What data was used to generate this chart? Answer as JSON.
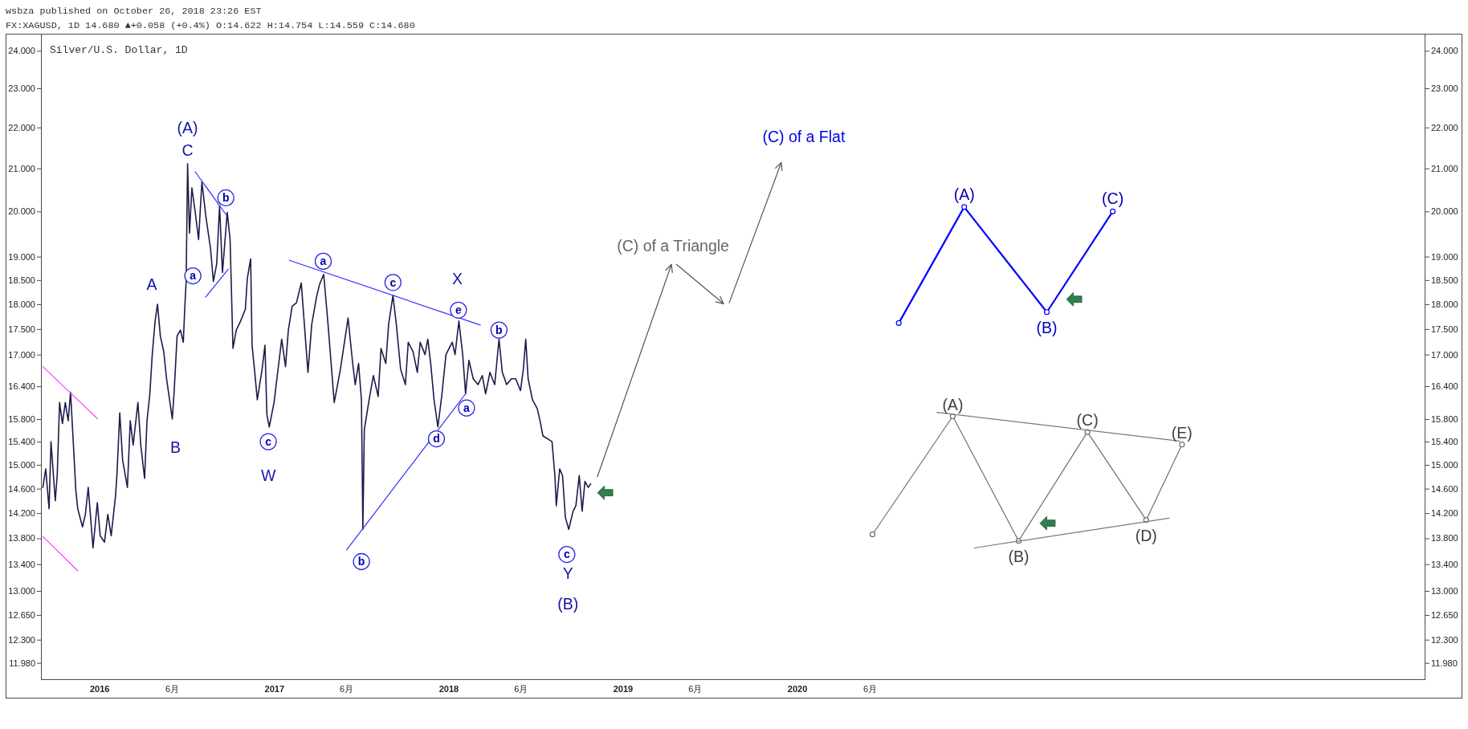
{
  "chart_data": {
    "type": "line",
    "title": "Silver/U.S. Dollar, 1D",
    "subtitle": "FX:XAGUSD, 1D 14.680 ▲+0.058 (+0.4%) O:14.622 H:14.754 L:14.559 C:14.680",
    "log": true,
    "xlim": [
      "2015-08-31",
      "2023-08-06"
    ],
    "xticks": [
      {
        "value": "2016-01-01",
        "label": "2016"
      },
      {
        "value": "2016-06-01",
        "label": "6月"
      },
      {
        "value": "2017-01-01",
        "label": "2017"
      },
      {
        "value": "2017-06-01",
        "label": "6月"
      },
      {
        "value": "2018-01-01",
        "label": "2018"
      },
      {
        "value": "2018-06-01",
        "label": "6月"
      },
      {
        "value": "2019-01-01",
        "label": "2019"
      },
      {
        "value": "2019-06-01",
        "label": "6月"
      },
      {
        "value": "2020-01-01",
        "label": "2020"
      },
      {
        "value": "2020-06-01",
        "label": "6月"
      }
    ],
    "ylim": [
      11.76,
      24.47
    ],
    "yticks": [
      {
        "value": 24,
        "label": "24.000"
      },
      {
        "value": 23,
        "label": "23.000"
      },
      {
        "value": 22,
        "label": "22.000"
      },
      {
        "value": 21,
        "label": "21.000"
      },
      {
        "value": 20,
        "label": "20.000"
      },
      {
        "value": 19,
        "label": "19.000"
      },
      {
        "value": 18.5,
        "label": "18.500"
      },
      {
        "value": 18,
        "label": "18.000"
      },
      {
        "value": 17.5,
        "label": "17.500"
      },
      {
        "value": 17,
        "label": "17.000"
      },
      {
        "value": 16.4,
        "label": "16.400"
      },
      {
        "value": 15.8,
        "label": "15.800"
      },
      {
        "value": 15.4,
        "label": "15.400"
      },
      {
        "value": 15,
        "label": "15.000"
      },
      {
        "value": 14.6,
        "label": "14.600"
      },
      {
        "value": 14.2,
        "label": "14.200"
      },
      {
        "value": 13.8,
        "label": "13.800"
      },
      {
        "value": 13.4,
        "label": "13.400"
      },
      {
        "value": 13,
        "label": "13.000"
      },
      {
        "value": 12.65,
        "label": "12.650"
      },
      {
        "value": 12.3,
        "label": "12.300"
      },
      {
        "value": 11.98,
        "label": "11.980"
      }
    ],
    "series": [
      {
        "color": "#1f1a4a",
        "x": [
          "2015-09-04",
          "2015-09-10",
          "2015-09-17",
          "2015-09-21",
          "2015-09-30",
          "2015-10-04",
          "2015-10-09",
          "2015-10-15",
          "2015-10-21",
          "2015-10-27",
          "2015-11-01",
          "2015-11-07",
          "2015-11-12",
          "2015-11-16",
          "2015-11-26",
          "2015-12-02",
          "2015-12-08",
          "2015-12-18",
          "2015-12-27",
          "2016-01-02",
          "2016-01-11",
          "2016-01-18",
          "2016-01-25",
          "2016-02-03",
          "2016-02-06",
          "2016-02-12",
          "2016-02-18",
          "2016-02-28",
          "2016-03-05",
          "2016-03-11",
          "2016-03-21",
          "2016-03-27",
          "2016-04-04",
          "2016-04-09",
          "2016-04-15",
          "2016-04-20",
          "2016-04-26",
          "2016-05-01",
          "2016-05-07",
          "2016-05-14",
          "2016-05-20",
          "2016-06-01",
          "2016-06-05",
          "2016-06-11",
          "2016-06-18",
          "2016-06-24",
          "2016-06-27",
          "2016-06-30",
          "2016-07-03",
          "2016-07-07",
          "2016-07-12",
          "2016-07-19",
          "2016-07-26",
          "2016-08-02",
          "2016-08-10",
          "2016-08-20",
          "2016-08-26",
          "2016-09-02",
          "2016-09-08",
          "2016-09-14",
          "2016-09-24",
          "2016-09-30",
          "2016-10-03",
          "2016-10-06",
          "2016-10-13",
          "2016-10-22",
          "2016-11-01",
          "2016-11-05",
          "2016-11-12",
          "2016-11-15",
          "2016-11-20",
          "2016-11-26",
          "2016-12-06",
          "2016-12-12",
          "2016-12-16",
          "2016-12-21",
          "2016-12-31",
          "2017-01-06",
          "2017-01-16",
          "2017-01-24",
          "2017-01-30",
          "2017-02-07",
          "2017-02-16",
          "2017-02-26",
          "2017-03-04",
          "2017-03-12",
          "2017-03-20",
          "2017-03-30",
          "2017-04-05",
          "2017-04-14",
          "2017-04-23",
          "2017-05-06",
          "2017-05-19",
          "2017-06-04",
          "2017-06-13",
          "2017-06-19",
          "2017-06-26",
          "2017-07-02",
          "2017-07-05",
          "2017-07-08",
          "2017-07-18",
          "2017-07-27",
          "2017-08-06",
          "2017-08-12",
          "2017-08-22",
          "2017-08-28",
          "2017-09-06",
          "2017-09-13",
          "2017-09-22",
          "2017-10-02",
          "2017-10-08",
          "2017-10-18",
          "2017-10-27",
          "2017-11-02",
          "2017-11-12",
          "2017-11-18",
          "2017-11-24",
          "2017-12-01",
          "2017-12-09",
          "2017-12-17",
          "2017-12-26",
          "2018-01-08",
          "2018-01-14",
          "2018-01-22",
          "2018-01-30",
          "2018-02-05",
          "2018-02-12",
          "2018-02-21",
          "2018-03-03",
          "2018-03-12",
          "2018-03-19",
          "2018-03-28",
          "2018-04-07",
          "2018-04-16",
          "2018-04-23",
          "2018-05-02",
          "2018-05-12",
          "2018-05-21",
          "2018-05-31",
          "2018-06-06",
          "2018-06-11",
          "2018-06-16",
          "2018-06-25",
          "2018-07-05",
          "2018-07-11",
          "2018-07-17",
          "2018-07-27",
          "2018-08-05",
          "2018-08-11",
          "2018-08-14",
          "2018-08-21",
          "2018-08-27",
          "2018-09-02",
          "2018-09-09",
          "2018-09-18",
          "2018-09-24",
          "2018-10-01",
          "2018-10-07",
          "2018-10-13",
          "2018-10-20",
          "2018-10-25"
        ],
        "values": [
          14.62,
          14.93,
          14.27,
          15.4,
          14.4,
          14.82,
          16.1,
          15.72,
          16.1,
          15.77,
          16.29,
          15.34,
          14.57,
          14.27,
          13.98,
          14.18,
          14.62,
          13.65,
          14.37,
          13.84,
          13.74,
          14.18,
          13.84,
          14.47,
          14.82,
          15.91,
          15.08,
          14.62,
          15.77,
          15.34,
          16.1,
          15.34,
          14.77,
          15.77,
          16.26,
          17.0,
          17.66,
          18.0,
          17.36,
          17.06,
          16.54,
          15.8,
          16.32,
          17.36,
          17.48,
          17.24,
          17.9,
          18.47,
          21.11,
          19.51,
          20.54,
          19.98,
          19.37,
          20.68,
          19.91,
          19.18,
          18.47,
          18.85,
          20.12,
          18.66,
          19.98,
          19.37,
          18.21,
          17.12,
          17.48,
          17.66,
          17.9,
          18.53,
          18.95,
          17.18,
          16.72,
          16.15,
          16.72,
          17.18,
          15.88,
          15.66,
          16.1,
          16.54,
          17.3,
          16.77,
          17.48,
          17.96,
          18.03,
          18.44,
          17.66,
          16.66,
          17.6,
          18.15,
          18.4,
          18.62,
          17.6,
          16.1,
          16.72,
          17.72,
          16.89,
          16.43,
          16.83,
          16.15,
          13.94,
          15.61,
          16.15,
          16.6,
          16.21,
          17.12,
          16.83,
          17.6,
          18.18,
          17.6,
          16.72,
          16.43,
          17.24,
          17.06,
          16.66,
          17.24,
          17.0,
          17.3,
          16.83,
          16.15,
          15.66,
          16.21,
          17.0,
          17.24,
          17.0,
          17.66,
          17.0,
          16.26,
          16.89,
          16.54,
          16.43,
          16.6,
          16.26,
          16.66,
          16.43,
          17.3,
          16.66,
          16.43,
          16.54,
          16.54,
          16.32,
          16.72,
          17.3,
          16.54,
          16.15,
          15.99,
          15.77,
          15.5,
          15.45,
          15.4,
          14.82,
          14.32,
          14.93,
          14.82,
          14.13,
          13.94,
          14.23,
          14.32,
          14.82,
          14.23,
          14.72,
          14.62,
          14.68
        ]
      },
      {
        "color": "#ff40ff",
        "x": [
          "2015-09-04",
          "2015-12-27"
        ],
        "values": [
          16.77,
          15.81
        ]
      },
      {
        "color": "#ff40ff",
        "x": [
          "2015-09-04",
          "2015-11-16"
        ],
        "values": [
          13.83,
          13.3
        ]
      },
      {
        "color": "#3030ff",
        "x": [
          "2016-07-19",
          "2016-09-22"
        ],
        "values": [
          20.92,
          19.92
        ]
      },
      {
        "color": "#3030ff",
        "x": [
          "2016-08-10",
          "2016-09-26"
        ],
        "values": [
          18.15,
          18.73
        ]
      },
      {
        "color": "#3030ff",
        "x": [
          "2017-02-01",
          "2018-03-08"
        ],
        "values": [
          18.92,
          17.58
        ]
      },
      {
        "color": "#3030ff",
        "x": [
          "2017-06-01",
          "2018-02-05"
        ],
        "values": [
          13.62,
          16.26
        ]
      },
      {
        "color": "#555555",
        "x": [
          "2018-11-08",
          "2019-04-12"
        ],
        "values": [
          14.8,
          18.83
        ]
      },
      {
        "color": "#555555",
        "x": [
          "2019-04-23",
          "2019-07-30"
        ],
        "values": [
          18.83,
          18.01
        ]
      },
      {
        "color": "#555555",
        "x": [
          "2019-08-11",
          "2019-11-28"
        ],
        "values": [
          18.03,
          21.14
        ]
      },
      {
        "color": "#0000ff",
        "marker": "circle",
        "x": [
          "2020-07-31",
          "2020-12-15",
          "2021-06-06",
          "2021-10-22"
        ],
        "values": [
          17.62,
          20.1,
          17.84,
          20.0
        ]
      },
      {
        "color": "#6e6e6e",
        "marker": "circle",
        "x": [
          "2020-06-06",
          "2020-11-21",
          "2021-04-08",
          "2021-08-30",
          "2021-12-31",
          "2022-03-16"
        ],
        "values": [
          13.86,
          15.85,
          13.76,
          15.57,
          14.09,
          15.35
        ]
      },
      {
        "color": "#7a7a7a",
        "x": [
          "2020-10-19",
          "2022-03-11"
        ],
        "values": [
          15.92,
          15.41
        ]
      },
      {
        "color": "#7a7a7a",
        "x": [
          "2021-01-05",
          "2022-02-17"
        ],
        "values": [
          13.65,
          14.12
        ]
      }
    ],
    "annotations": [
      "wsbza published on October 26, 2018 23:26 EST",
      {
        "text": "(A)",
        "x": "2016-07-03",
        "y": 21.11
      },
      {
        "text": "C",
        "x": "2016-07-03",
        "y": 21.11
      },
      {
        "text": "a",
        "x": "2016-07-14",
        "y": 18.59
      },
      {
        "text": "b",
        "x": "2016-09-21",
        "y": 20.31
      },
      {
        "text": "A",
        "x": "2016-05-01",
        "y": 18.0
      },
      {
        "text": "B",
        "x": "2016-06-01",
        "y": 15.8
      },
      {
        "text": "c",
        "x": "2016-12-19",
        "y": 15.4
      },
      {
        "text": "W",
        "x": "2016-12-21",
        "y": 15.66
      },
      {
        "text": "a",
        "x": "2017-04-13",
        "y": 18.9
      },
      {
        "text": "b",
        "x": "2017-07-02",
        "y": 13.44
      },
      {
        "text": "c",
        "x": "2017-09-06",
        "y": 18.45
      },
      {
        "text": "d",
        "x": "2017-12-06",
        "y": 15.45
      },
      {
        "text": "X",
        "x": "2018-01-22",
        "y": 17.66
      },
      {
        "text": "e",
        "x": "2018-01-21",
        "y": 17.88
      },
      {
        "text": "a",
        "x": "2018-02-07",
        "y": 16.0
      },
      {
        "text": "b",
        "x": "2018-04-16",
        "y": 17.48
      },
      {
        "text": "c",
        "x": "2018-09-05",
        "y": 13.55
      },
      {
        "text": "Y",
        "x": "2018-09-09",
        "y": 13.94
      },
      "(B)",
      {
        "text": "(C) of a Triangle",
        "x": "2019-04-12",
        "y": 18.83
      },
      {
        "text": "(C) of a Flat",
        "x": "2019-11-28",
        "y": 21.14
      },
      {
        "text": "(A)",
        "x": "2020-12-15",
        "y": 20.1
      },
      {
        "text": "(B)",
        "x": "2021-06-06",
        "y": 17.84
      },
      {
        "text": "(C)",
        "x": "2021-10-22",
        "y": 20.0
      },
      {
        "text": "(A)",
        "x": "2020-11-21",
        "y": 15.85
      },
      {
        "text": "(B)",
        "x": "2021-04-08",
        "y": 13.76
      },
      {
        "text": "(C)",
        "x": "2021-08-30",
        "y": 15.57
      },
      {
        "text": "(D)",
        "x": "2021-12-31",
        "y": 14.09
      },
      {
        "text": "(E)",
        "x": "2022-03-16",
        "y": 15.35
      }
    ]
  }
}
